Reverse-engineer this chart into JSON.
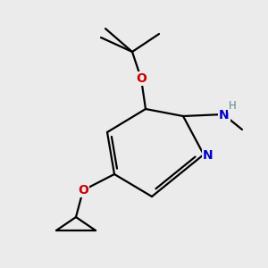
{
  "background_color": "#ebebeb",
  "bond_color": "#000000",
  "bond_width": 1.6,
  "atom_colors": {
    "N": "#0000cc",
    "O": "#cc0000",
    "H": "#5a8a8a",
    "C": "#000000"
  },
  "font_size_atom": 10,
  "font_size_H": 8.5,
  "font_size_me": 9
}
